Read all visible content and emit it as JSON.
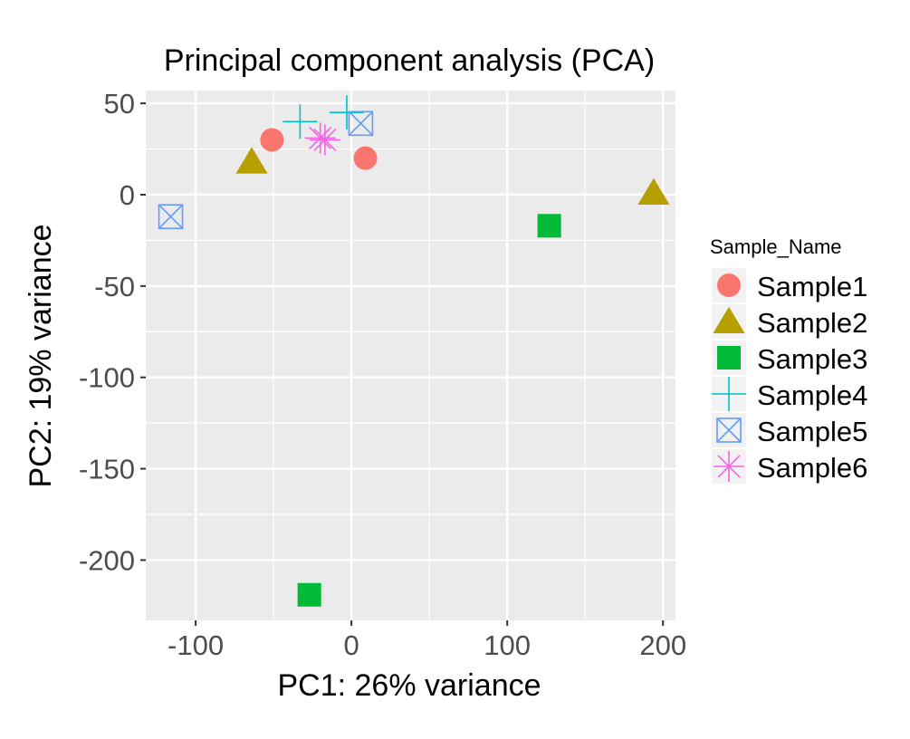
{
  "chart_data": {
    "type": "scatter",
    "title": "Principal component analysis (PCA)",
    "xlabel": "PC1: 26% variance",
    "ylabel": "PC2: 19% variance",
    "xlim": [
      -132,
      208
    ],
    "ylim": [
      -233,
      57
    ],
    "x_ticks": [
      -100,
      0,
      100,
      200
    ],
    "y_ticks": [
      50,
      0,
      -50,
      -100,
      -150,
      -200
    ],
    "x_tick_labels": [
      "-100",
      "0",
      "100",
      "200"
    ],
    "y_tick_labels": [
      "50",
      "0",
      "-50",
      "-100",
      "-150",
      "-200"
    ],
    "grid": true,
    "background": "#ebebeb",
    "legend": {
      "title": "Sample_Name",
      "placement": "right"
    },
    "series": [
      {
        "name": "Sample1",
        "shape": "circle",
        "color": "#F8766D",
        "points": [
          [
            -51,
            30
          ],
          [
            9,
            20
          ]
        ]
      },
      {
        "name": "Sample2",
        "shape": "triangle",
        "color": "#B79F00",
        "points": [
          [
            -64,
            18
          ],
          [
            194,
            1
          ]
        ]
      },
      {
        "name": "Sample3",
        "shape": "square",
        "color": "#00BA38",
        "points": [
          [
            127,
            -17
          ],
          [
            -27,
            -219
          ]
        ]
      },
      {
        "name": "Sample4",
        "shape": "plus",
        "color": "#00BFC4",
        "points": [
          [
            -33,
            40
          ],
          [
            -3,
            45
          ]
        ]
      },
      {
        "name": "Sample5",
        "shape": "boxcross",
        "color": "#619CFF",
        "points": [
          [
            6,
            39
          ],
          [
            -116,
            -12
          ]
        ]
      },
      {
        "name": "Sample6",
        "shape": "asterisk",
        "color": "#F564E3",
        "points": [
          [
            -20,
            31
          ],
          [
            -17,
            30
          ]
        ]
      }
    ]
  }
}
